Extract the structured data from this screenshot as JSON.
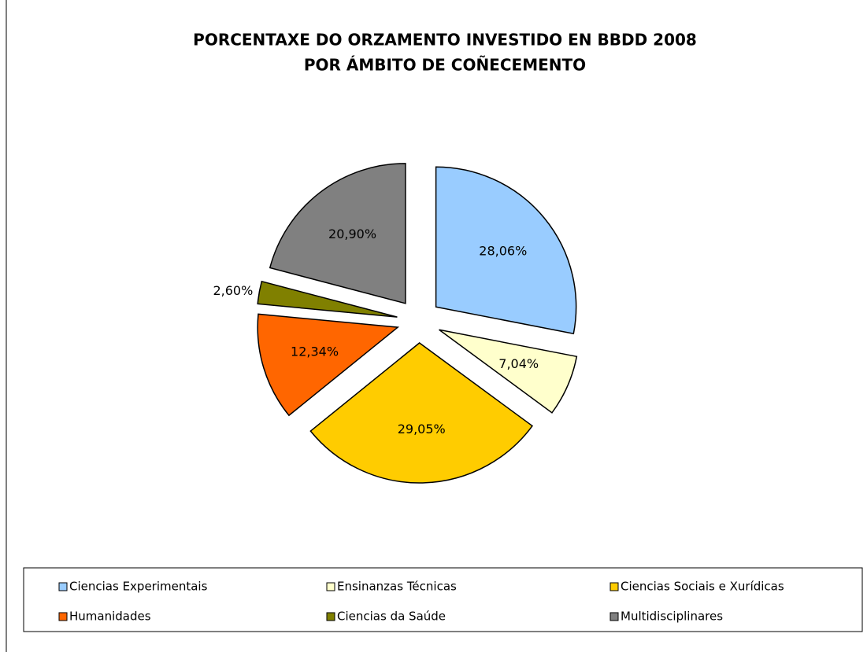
{
  "chart_data": {
    "type": "pie",
    "title": [
      "PORCENTAXE DO ORZAMENTO INVESTIDO EN BBDD 2008",
      "POR ÁMBITO DE COÑECEMENTO"
    ],
    "categories": [
      "Ciencias Experimentais",
      "Ensinanzas Técnicas",
      "Ciencias Sociais e Xurídicas",
      "Humanidades",
      "Ciencias da Saúde",
      "Multidisciplinares"
    ],
    "values": [
      28.06,
      7.04,
      29.05,
      12.34,
      2.6,
      20.9
    ],
    "value_labels": [
      "28,06%",
      "7,04%",
      "29,05%",
      "12,34%",
      "2,60%",
      "20,90%"
    ],
    "colors": [
      "#99ccff",
      "#ffffcc",
      "#ffcc00",
      "#ff6600",
      "#808000",
      "#808080"
    ],
    "legend": "bottom"
  }
}
